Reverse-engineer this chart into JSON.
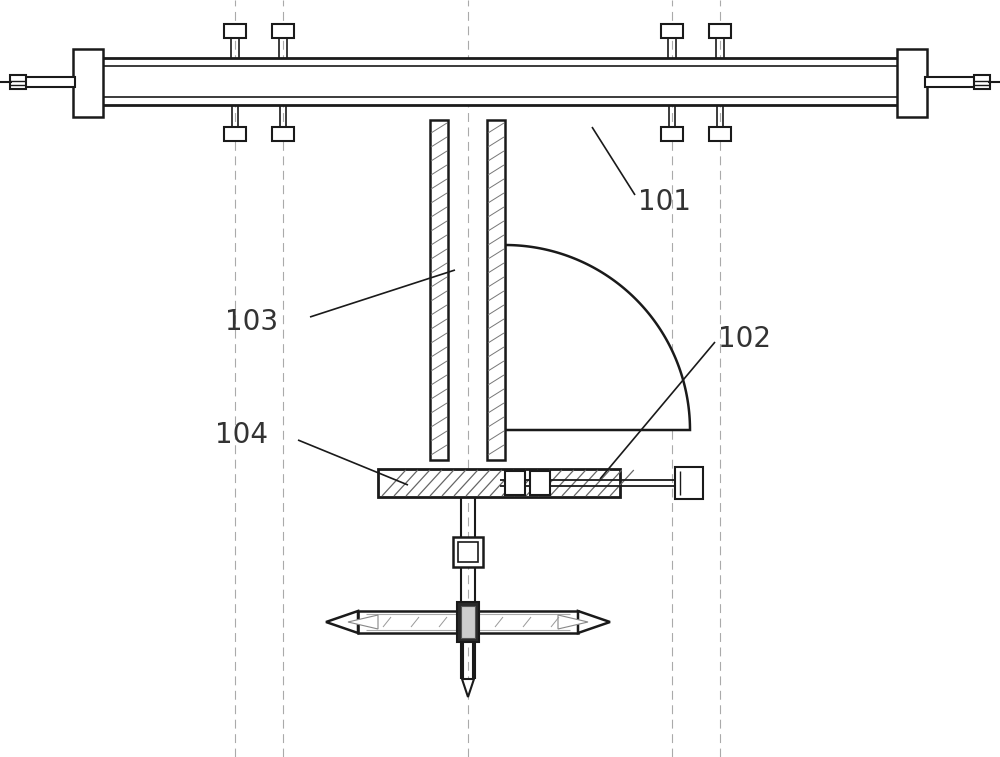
{
  "background_color": "#ffffff",
  "line_color": "#1a1a1a",
  "label_color": "#333333",
  "label_fontsize": 20,
  "dash_color": "#aaaaaa",
  "hatch_color": "#555555"
}
